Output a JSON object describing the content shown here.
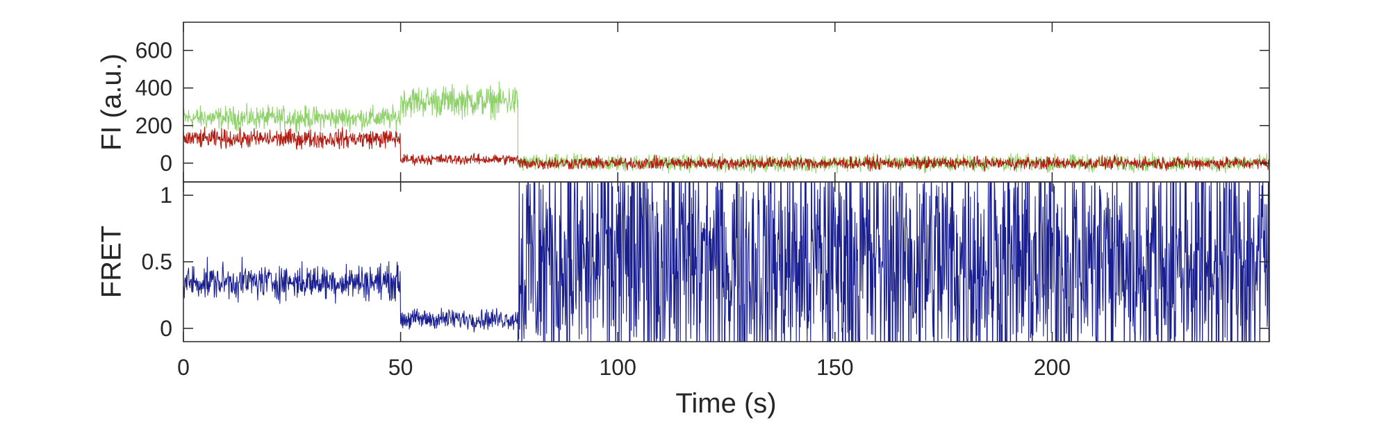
{
  "chart_data": [
    {
      "type": "line",
      "ylabel": "FI (a.u.)",
      "xlabel": "",
      "xlim": [
        0,
        250
      ],
      "ylim": [
        -100,
        750
      ],
      "yticks": [
        0,
        200,
        400,
        600
      ],
      "ytick_labels": [
        "0",
        "200",
        "400",
        "600"
      ],
      "grid": false,
      "legend": "none",
      "series": [
        {
          "color": "#8fd16a",
          "segments": [
            {
              "t0": 0,
              "t1": 50,
              "mean": 240,
              "noise": 55
            },
            {
              "t0": 50,
              "t1": 77,
              "mean": 330,
              "noise": 75
            },
            {
              "t0": 77,
              "t1": 250,
              "mean": 0,
              "noise": 40
            }
          ]
        },
        {
          "color": "#b01c12",
          "segments": [
            {
              "t0": 0,
              "t1": 50,
              "mean": 130,
              "noise": 45
            },
            {
              "t0": 50,
              "t1": 77,
              "mean": 20,
              "noise": 25
            },
            {
              "t0": 77,
              "t1": 250,
              "mean": 0,
              "noise": 30
            }
          ]
        }
      ]
    },
    {
      "type": "line",
      "ylabel": "FRET",
      "xlabel": "Time (s)",
      "xlim": [
        0,
        250
      ],
      "ylim": [
        -0.1,
        1.1
      ],
      "yticks": [
        0,
        0.5,
        1
      ],
      "ytick_labels": [
        "0",
        "0.5",
        "1"
      ],
      "xticks": [
        0,
        50,
        100,
        150,
        200
      ],
      "xtick_labels": [
        "0",
        "50",
        "100",
        "150",
        "200"
      ],
      "grid": false,
      "legend": "none",
      "series": [
        {
          "color": "#1a1f8f",
          "segments": [
            {
              "t0": 0,
              "t1": 50,
              "mean": 0.35,
              "noise": 0.12
            },
            {
              "t0": 50,
              "t1": 77,
              "mean": 0.07,
              "noise": 0.07
            },
            {
              "t0": 77,
              "t1": 250,
              "mean": 0.5,
              "noise": 0.9
            }
          ]
        }
      ]
    }
  ]
}
